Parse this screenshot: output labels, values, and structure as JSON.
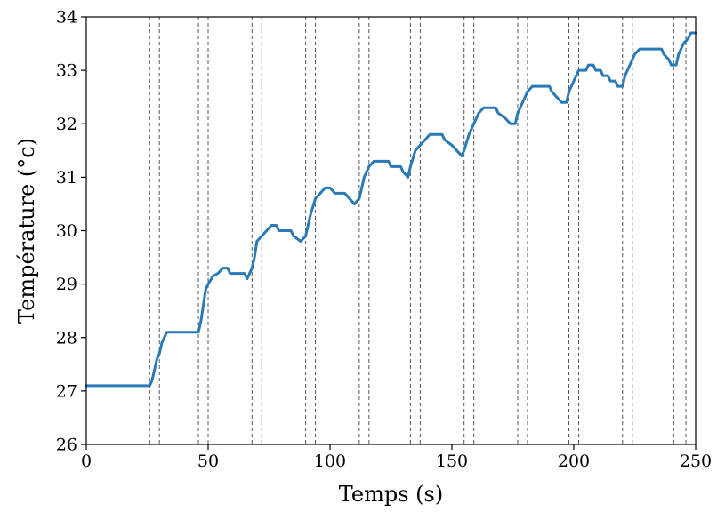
{
  "chart_data": {
    "type": "line",
    "title": "",
    "xlabel": "Temps (s)",
    "ylabel": "Température (°c)",
    "xlim": [
      0,
      250
    ],
    "ylim": [
      26,
      34
    ],
    "xticks": [
      0,
      50,
      100,
      150,
      200,
      250
    ],
    "yticks": [
      26,
      27,
      28,
      29,
      30,
      31,
      32,
      33,
      34
    ],
    "grid": false,
    "legend": "none",
    "vlines": [
      26,
      30,
      46,
      50,
      68,
      72,
      90,
      94,
      112,
      116,
      133,
      137,
      155,
      159,
      177,
      181,
      198,
      202,
      220,
      224,
      241,
      246
    ],
    "series": [
      {
        "color": "#2a7ab8",
        "points": [
          [
            0,
            27.1
          ],
          [
            26,
            27.1
          ],
          [
            27,
            27.2
          ],
          [
            28,
            27.4
          ],
          [
            29,
            27.6
          ],
          [
            30,
            27.7
          ],
          [
            31,
            27.9
          ],
          [
            32,
            28.0
          ],
          [
            33,
            28.1
          ],
          [
            46,
            28.1
          ],
          [
            47,
            28.3
          ],
          [
            48,
            28.6
          ],
          [
            49,
            28.9
          ],
          [
            50,
            29.0
          ],
          [
            52,
            29.15
          ],
          [
            54,
            29.2
          ],
          [
            56,
            29.3
          ],
          [
            58,
            29.3
          ],
          [
            59,
            29.2
          ],
          [
            65,
            29.2
          ],
          [
            66,
            29.1
          ],
          [
            68,
            29.3
          ],
          [
            69,
            29.5
          ],
          [
            70,
            29.8
          ],
          [
            72,
            29.9
          ],
          [
            74,
            30.0
          ],
          [
            76,
            30.1
          ],
          [
            78,
            30.1
          ],
          [
            79,
            30.0
          ],
          [
            84,
            30.0
          ],
          [
            85,
            29.9
          ],
          [
            88,
            29.8
          ],
          [
            90,
            29.9
          ],
          [
            91,
            30.1
          ],
          [
            92,
            30.3
          ],
          [
            94,
            30.6
          ],
          [
            96,
            30.7
          ],
          [
            98,
            30.8
          ],
          [
            100,
            30.8
          ],
          [
            102,
            30.7
          ],
          [
            106,
            30.7
          ],
          [
            108,
            30.6
          ],
          [
            110,
            30.5
          ],
          [
            112,
            30.6
          ],
          [
            113,
            30.8
          ],
          [
            114,
            31.0
          ],
          [
            116,
            31.2
          ],
          [
            118,
            31.3
          ],
          [
            124,
            31.3
          ],
          [
            125,
            31.2
          ],
          [
            129,
            31.2
          ],
          [
            130,
            31.1
          ],
          [
            132,
            31.0
          ],
          [
            133,
            31.2
          ],
          [
            135,
            31.5
          ],
          [
            137,
            31.6
          ],
          [
            139,
            31.7
          ],
          [
            141,
            31.8
          ],
          [
            146,
            31.8
          ],
          [
            147,
            31.7
          ],
          [
            150,
            31.6
          ],
          [
            152,
            31.5
          ],
          [
            154,
            31.4
          ],
          [
            155,
            31.5
          ],
          [
            157,
            31.8
          ],
          [
            159,
            32.0
          ],
          [
            161,
            32.2
          ],
          [
            163,
            32.3
          ],
          [
            168,
            32.3
          ],
          [
            169,
            32.2
          ],
          [
            172,
            32.1
          ],
          [
            174,
            32.0
          ],
          [
            176,
            32.0
          ],
          [
            177,
            32.2
          ],
          [
            179,
            32.4
          ],
          [
            181,
            32.6
          ],
          [
            183,
            32.7
          ],
          [
            190,
            32.7
          ],
          [
            191,
            32.6
          ],
          [
            193,
            32.5
          ],
          [
            195,
            32.4
          ],
          [
            197,
            32.4
          ],
          [
            198,
            32.6
          ],
          [
            200,
            32.8
          ],
          [
            202,
            33.0
          ],
          [
            205,
            33.0
          ],
          [
            206,
            33.1
          ],
          [
            208,
            33.1
          ],
          [
            209,
            33.0
          ],
          [
            211,
            33.0
          ],
          [
            212,
            32.9
          ],
          [
            214,
            32.9
          ],
          [
            215,
            32.8
          ],
          [
            217,
            32.8
          ],
          [
            218,
            32.7
          ],
          [
            220,
            32.7
          ],
          [
            221,
            32.9
          ],
          [
            223,
            33.1
          ],
          [
            224,
            33.2
          ],
          [
            225,
            33.3
          ],
          [
            227,
            33.4
          ],
          [
            236,
            33.4
          ],
          [
            237,
            33.3
          ],
          [
            239,
            33.2
          ],
          [
            240,
            33.1
          ],
          [
            242,
            33.1
          ],
          [
            243,
            33.3
          ],
          [
            245,
            33.5
          ],
          [
            247,
            33.6
          ],
          [
            248,
            33.7
          ],
          [
            250,
            33.7
          ]
        ]
      }
    ]
  }
}
